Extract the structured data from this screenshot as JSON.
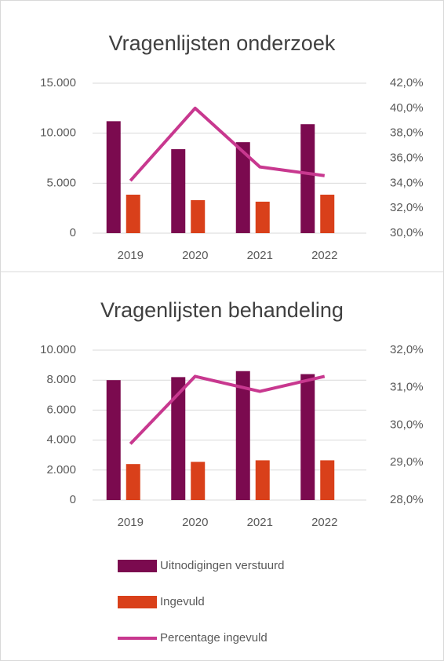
{
  "chart_data": [
    {
      "type": "bar",
      "title": "Vragenlijsten onderzoek",
      "categories": [
        "2019",
        "2020",
        "2021",
        "2022"
      ],
      "series": [
        {
          "color": "#7b0a4f",
          "values": [
            11200,
            8400,
            9100,
            10900
          ]
        },
        {
          "color": "#d9401a",
          "values": [
            3850,
            3300,
            3150,
            3850
          ]
        },
        {
          "color": "#c8388f",
          "values": [
            34.2,
            40.0,
            35.3,
            34.6
          ],
          "axis": "y2",
          "type": "line"
        }
      ],
      "ylim": [
        0,
        15000
      ],
      "yticks": [
        0,
        {
          "value": 5000,
          "label": "5.000"
        },
        {
          "value": 10000,
          "label": "10.000"
        },
        {
          "value": 15000,
          "label": "15.000"
        }
      ],
      "y2lim": [
        30,
        42
      ],
      "y2ticks": [
        {
          "value": 30,
          "label": "30,0%"
        },
        {
          "value": 32,
          "label": "32,0%"
        },
        {
          "value": 34,
          "label": "34,0%"
        },
        {
          "value": 36,
          "label": "36,0%"
        },
        {
          "value": 38,
          "label": "38,0%"
        },
        {
          "value": 40,
          "label": "40,0%"
        },
        {
          "value": 42,
          "label": "42,0%"
        }
      ],
      "grid": true
    },
    {
      "type": "bar",
      "title": "Vragenlijsten behandeling",
      "categories": [
        "2019",
        "2020",
        "2021",
        "2022"
      ],
      "series": [
        {
          "name": "Uitnodigingen verstuurd",
          "color": "#7b0a4f",
          "values": [
            8000,
            8200,
            8600,
            8400
          ]
        },
        {
          "name": "Ingevuld",
          "color": "#d9401a",
          "values": [
            2400,
            2550,
            2650,
            2650
          ]
        },
        {
          "name": "Percentage ingevuld",
          "color": "#c8388f",
          "values": [
            29.5,
            31.3,
            30.9,
            31.3
          ],
          "axis": "y2",
          "type": "line"
        }
      ],
      "ylim": [
        0,
        10000
      ],
      "yticks": [
        0,
        {
          "value": 2000,
          "label": "2.000"
        },
        {
          "value": 4000,
          "label": "4.000"
        },
        {
          "value": 6000,
          "label": "6.000"
        },
        {
          "value": 8000,
          "label": "8.000"
        },
        {
          "value": 10000,
          "label": "10.000"
        }
      ],
      "y2lim": [
        28,
        32
      ],
      "y2ticks": [
        {
          "value": 28,
          "label": "28,0%"
        },
        {
          "value": 29,
          "label": "29,0%"
        },
        {
          "value": 30,
          "label": "30,0%"
        },
        {
          "value": 31,
          "label": "31,0%"
        },
        {
          "value": 32,
          "label": "32,0%"
        }
      ],
      "grid": true,
      "legend": "bottom"
    }
  ]
}
